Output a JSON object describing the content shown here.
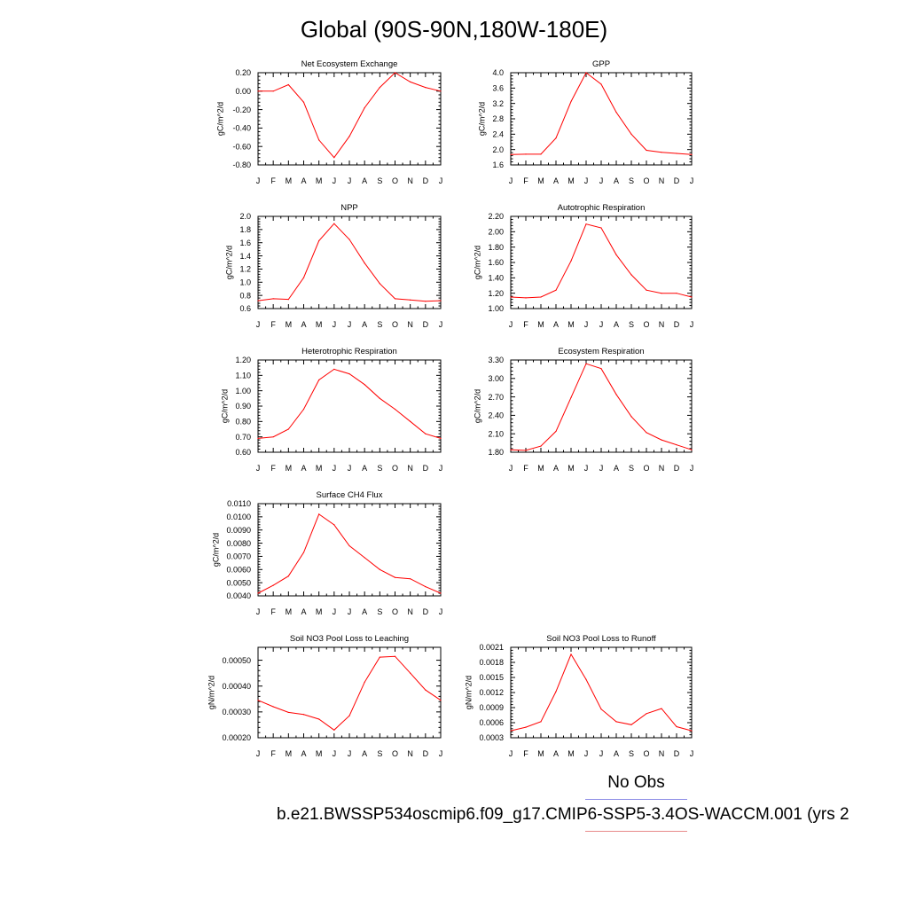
{
  "page": {
    "title": "Global (90S-90N,180W-180E)",
    "legend_label": "No Obs",
    "case_label": "b.e21.BWSSP534oscmip6.f09_g17.CMIP6-SSP5-3.4OS-WACCM.001 (yrs 2",
    "colors": {
      "series": "#ff0000",
      "obs_line": "#8a8ae6",
      "model_line": "#e88a8a"
    }
  },
  "chart_data": [
    {
      "type": "line",
      "title": "Net Ecosystem Exchange",
      "ylabel": "gC/m^2/d",
      "x": [
        "J",
        "F",
        "M",
        "A",
        "M",
        "J",
        "J",
        "A",
        "S",
        "O",
        "N",
        "D",
        "J"
      ],
      "ylim": [
        -0.8,
        0.2
      ],
      "yticks": [
        "0.20",
        "0.00",
        "-0.20",
        "-0.40",
        "-0.60",
        "-0.80"
      ],
      "series": [
        {
          "values": [
            0.0,
            0.0,
            0.07,
            -0.12,
            -0.53,
            -0.72,
            -0.49,
            -0.18,
            0.04,
            0.2,
            0.1,
            0.04,
            0.0
          ]
        }
      ]
    },
    {
      "type": "line",
      "title": "GPP",
      "ylabel": "gC/m^2/d",
      "x": [
        "J",
        "F",
        "M",
        "A",
        "M",
        "J",
        "J",
        "A",
        "S",
        "O",
        "N",
        "D",
        "J"
      ],
      "ylim": [
        1.6,
        4.0
      ],
      "yticks": [
        "4.0",
        "3.6",
        "3.2",
        "2.8",
        "2.4",
        "2.0",
        "1.6"
      ],
      "series": [
        {
          "values": [
            1.87,
            1.88,
            1.88,
            2.3,
            3.25,
            4.0,
            3.7,
            2.97,
            2.4,
            1.98,
            1.93,
            1.9,
            1.87
          ]
        }
      ]
    },
    {
      "type": "line",
      "title": "NPP",
      "ylabel": "gC/m^2/d",
      "x": [
        "J",
        "F",
        "M",
        "A",
        "M",
        "J",
        "J",
        "A",
        "S",
        "O",
        "N",
        "D",
        "J"
      ],
      "ylim": [
        0.6,
        2.0
      ],
      "yticks": [
        "2.0",
        "1.8",
        "1.6",
        "1.4",
        "1.2",
        "1.0",
        "0.8",
        "0.6"
      ],
      "series": [
        {
          "values": [
            0.72,
            0.75,
            0.74,
            1.07,
            1.63,
            1.89,
            1.65,
            1.29,
            0.98,
            0.75,
            0.73,
            0.71,
            0.72
          ]
        }
      ]
    },
    {
      "type": "line",
      "title": "Autotrophic Respiration",
      "ylabel": "gC/m^2/d",
      "x": [
        "J",
        "F",
        "M",
        "A",
        "M",
        "J",
        "J",
        "A",
        "S",
        "O",
        "N",
        "D",
        "J"
      ],
      "ylim": [
        1.0,
        2.2
      ],
      "yticks": [
        "2.20",
        "2.00",
        "1.80",
        "1.60",
        "1.40",
        "1.20",
        "1.00"
      ],
      "series": [
        {
          "values": [
            1.15,
            1.14,
            1.15,
            1.24,
            1.62,
            2.1,
            2.05,
            1.7,
            1.44,
            1.24,
            1.2,
            1.2,
            1.15
          ]
        }
      ]
    },
    {
      "type": "line",
      "title": "Heterotrophic Respiration",
      "ylabel": "gC/m^2/d",
      "x": [
        "J",
        "F",
        "M",
        "A",
        "M",
        "J",
        "J",
        "A",
        "S",
        "O",
        "N",
        "D",
        "J"
      ],
      "ylim": [
        0.6,
        1.2
      ],
      "yticks": [
        "1.20",
        "1.10",
        "1.00",
        "0.90",
        "0.80",
        "0.70",
        "0.60"
      ],
      "series": [
        {
          "values": [
            0.69,
            0.7,
            0.75,
            0.88,
            1.07,
            1.14,
            1.11,
            1.04,
            0.95,
            0.88,
            0.8,
            0.72,
            0.69
          ]
        }
      ]
    },
    {
      "type": "line",
      "title": "Ecosystem Respiration",
      "ylabel": "gC/m^2/d",
      "x": [
        "J",
        "F",
        "M",
        "A",
        "M",
        "J",
        "J",
        "A",
        "S",
        "O",
        "N",
        "D",
        "J"
      ],
      "ylim": [
        1.8,
        3.3
      ],
      "yticks": [
        "3.30",
        "3.00",
        "2.70",
        "2.40",
        "2.10",
        "1.80"
      ],
      "series": [
        {
          "values": [
            1.84,
            1.83,
            1.9,
            2.14,
            2.69,
            3.24,
            3.16,
            2.74,
            2.38,
            2.12,
            2.0,
            1.92,
            1.84
          ]
        }
      ]
    },
    {
      "type": "line",
      "title": "Surface CH4 Flux",
      "ylabel": "gC/m^2/d",
      "x": [
        "J",
        "F",
        "M",
        "A",
        "M",
        "J",
        "J",
        "A",
        "S",
        "O",
        "N",
        "D",
        "J"
      ],
      "ylim": [
        0.004,
        0.011
      ],
      "yticks": [
        "0.0110",
        "0.0100",
        "0.0090",
        "0.0080",
        "0.0070",
        "0.0060",
        "0.0050",
        "0.0040"
      ],
      "series": [
        {
          "values": [
            0.0042,
            0.0048,
            0.0055,
            0.0073,
            0.0102,
            0.0094,
            0.0078,
            0.0069,
            0.006,
            0.0054,
            0.0053,
            0.0047,
            0.0042
          ]
        }
      ]
    },
    {
      "type": "line",
      "title": "Soil NO3 Pool Loss to Leaching",
      "ylabel": "gN/m^2/d",
      "x": [
        "J",
        "F",
        "M",
        "A",
        "M",
        "J",
        "J",
        "A",
        "S",
        "O",
        "N",
        "D",
        "J"
      ],
      "ylim": [
        0.0002,
        0.00055
      ],
      "yticks": [
        "0.00050",
        "0.00040",
        "0.00030",
        "0.00020"
      ],
      "series": [
        {
          "values": [
            0.000345,
            0.00032,
            0.000298,
            0.00029,
            0.000272,
            0.00023,
            0.000285,
            0.000415,
            0.000512,
            0.000515,
            0.00045,
            0.000385,
            0.000345
          ]
        }
      ]
    },
    {
      "type": "line",
      "title": "Soil NO3 Pool Loss to Runoff",
      "ylabel": "gN/m^2/d",
      "x": [
        "J",
        "F",
        "M",
        "A",
        "M",
        "J",
        "J",
        "A",
        "S",
        "O",
        "N",
        "D",
        "J"
      ],
      "ylim": [
        0.0003,
        0.0021
      ],
      "yticks": [
        "0.0021",
        "0.0018",
        "0.0015",
        "0.0012",
        "0.0009",
        "0.0006",
        "0.0003"
      ],
      "series": [
        {
          "values": [
            0.00044,
            0.00051,
            0.00062,
            0.00122,
            0.00196,
            0.00146,
            0.00087,
            0.00062,
            0.00056,
            0.00078,
            0.00088,
            0.00052,
            0.00044
          ]
        }
      ]
    }
  ]
}
